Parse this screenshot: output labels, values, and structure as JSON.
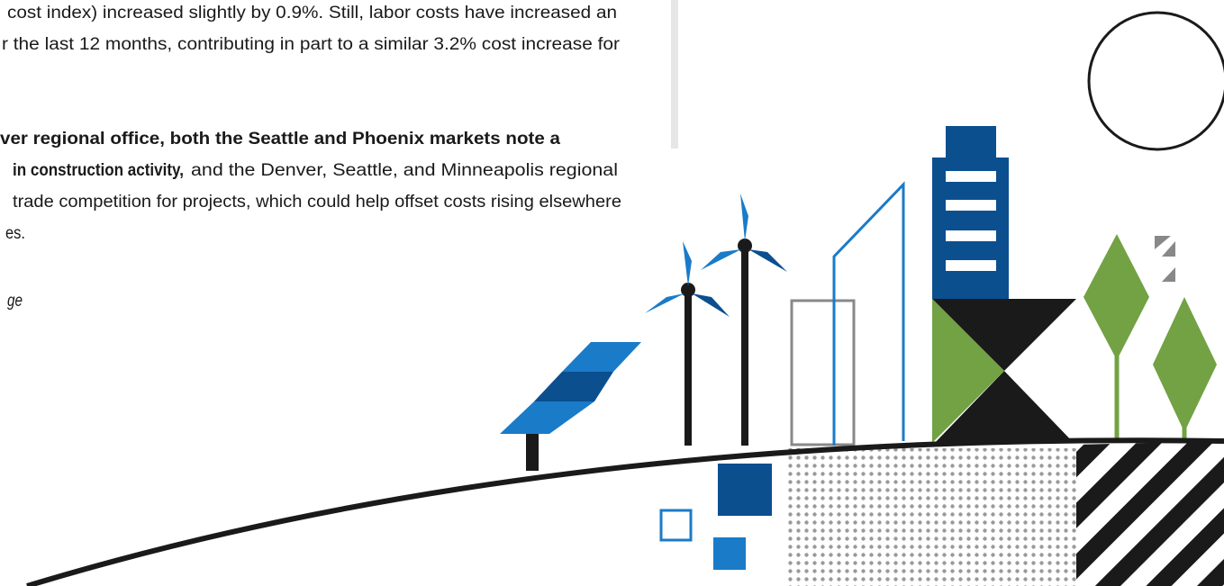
{
  "document": {
    "lines": [
      [
        {
          "text": "cost index) increased slightly by 0.9%. Still, labor costs have increased an",
          "style": "normal"
        }
      ],
      [
        {
          "text": "r the last 12 months, contributing in part to a similar 3.2% cost increase for",
          "style": "normal"
        }
      ],
      [
        {
          "text": "ver regional office, both the Seattle and Phoenix markets note a",
          "style": "bold"
        }
      ],
      [
        {
          "text": "in construction activity,",
          "style": "bold"
        },
        {
          "text": "and the Denver, Seattle, and Minneapolis regional",
          "style": "normal"
        }
      ],
      [
        {
          "text": "trade competition for projects, which could help offset costs rising elsewhere",
          "style": "normal"
        }
      ],
      [
        {
          "text": "es.",
          "style": "normal"
        }
      ],
      [
        {
          "text": "ge",
          "style": "italic"
        }
      ]
    ]
  }
}
